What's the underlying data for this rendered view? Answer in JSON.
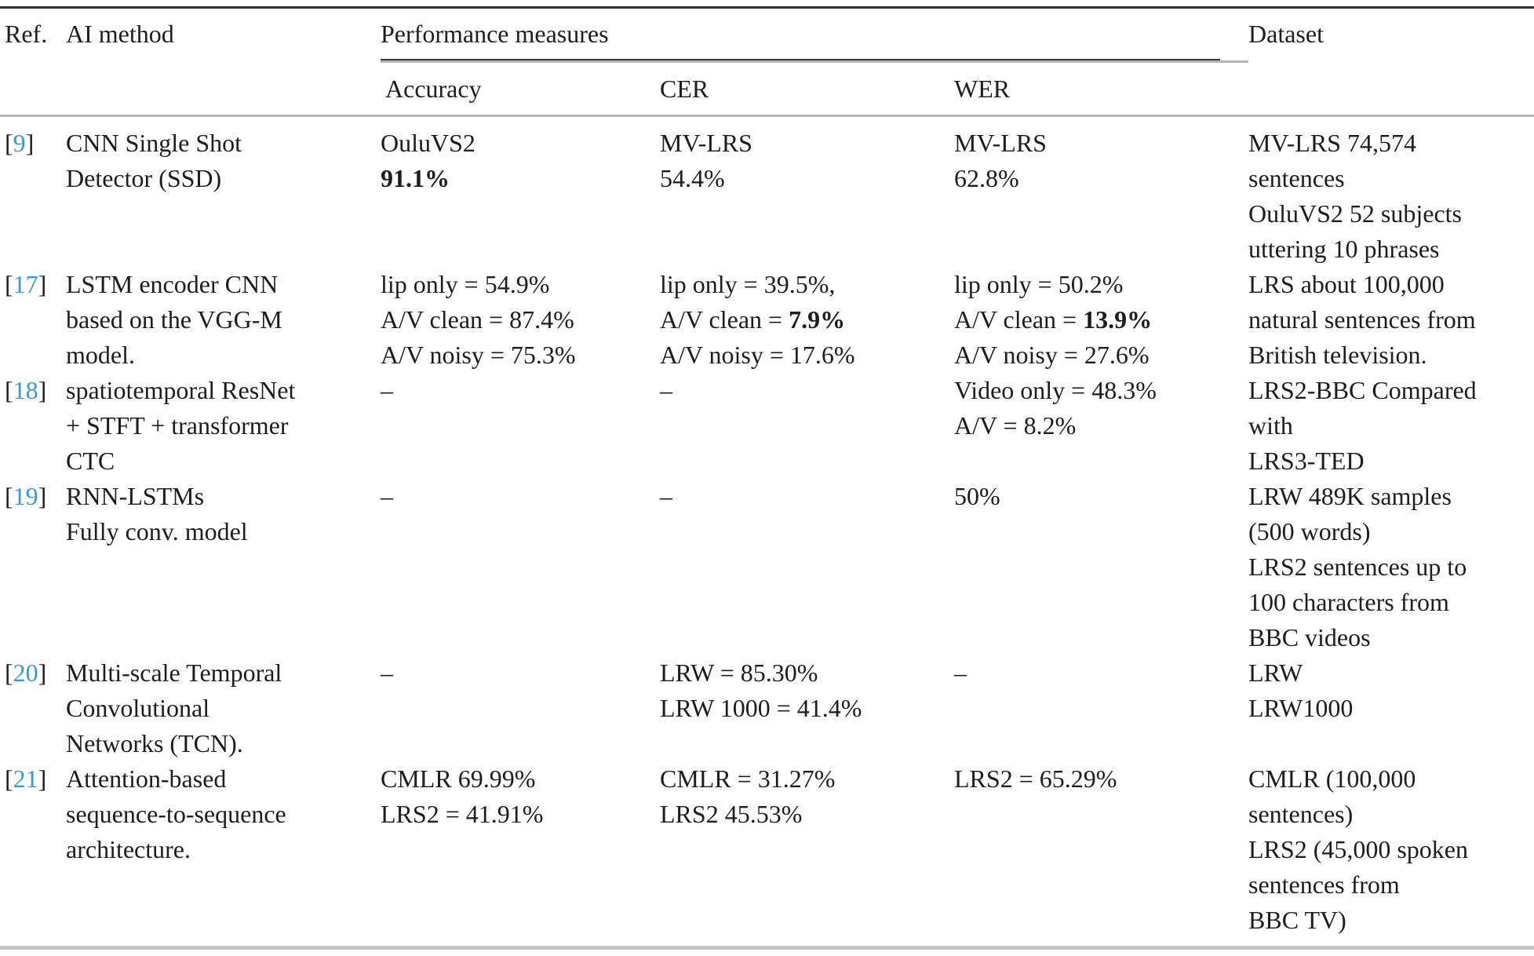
{
  "colors": {
    "ref_link_blue": "#3a99d2",
    "text": "#1d1d1d",
    "rule_dark": "#2f2f2f",
    "rule_gray": "#c6c6c6"
  },
  "table": {
    "header": {
      "ref": "Ref.",
      "method": "AI method",
      "performance": "Performance measures",
      "accuracy": "Accuracy",
      "cer": "CER",
      "wer": "WER",
      "dataset": "Dataset"
    },
    "rows": [
      {
        "ref": [
          [
            {
              "t": "["
            },
            {
              "t": "9",
              "link": true
            },
            {
              "t": "]"
            }
          ]
        ],
        "method": [
          [
            {
              "t": "CNN Single Shot"
            }
          ],
          [
            {
              "t": "Detector (SSD)"
            }
          ]
        ],
        "accuracy": [
          [
            {
              "t": "OuluVS2"
            }
          ],
          [
            {
              "t": "91.1%",
              "b": true
            }
          ]
        ],
        "cer": [
          [
            {
              "t": "MV-LRS"
            }
          ],
          [
            {
              "t": "54.4%"
            }
          ]
        ],
        "wer": [
          [
            {
              "t": "MV-LRS"
            }
          ],
          [
            {
              "t": "62.8%"
            }
          ]
        ],
        "dataset": [
          [
            {
              "t": "MV-LRS 74,574"
            }
          ],
          [
            {
              "t": "sentences"
            }
          ],
          [
            {
              "t": "OuluVS2 52 subjects"
            }
          ],
          [
            {
              "t": "uttering 10 phrases"
            }
          ]
        ]
      },
      {
        "ref": [
          [
            {
              "t": "["
            },
            {
              "t": "17",
              "link": true
            },
            {
              "t": "]"
            }
          ]
        ],
        "method": [
          [
            {
              "t": "LSTM encoder CNN"
            }
          ],
          [
            {
              "t": "based on the VGG-M"
            }
          ],
          [
            {
              "t": "model."
            }
          ]
        ],
        "accuracy": [
          [
            {
              "t": "lip only = 54.9%"
            }
          ],
          [
            {
              "t": "A/V clean = 87.4%"
            }
          ],
          [
            {
              "t": "A/V noisy = 75.3%"
            }
          ]
        ],
        "cer": [
          [
            {
              "t": "lip only = 39.5%,"
            }
          ],
          [
            {
              "t": "A/V clean = "
            },
            {
              "t": "7.9%",
              "b": true
            }
          ],
          [
            {
              "t": "A/V noisy = 17.6%"
            }
          ]
        ],
        "wer": [
          [
            {
              "t": "lip only = 50.2%"
            }
          ],
          [
            {
              "t": "A/V clean = "
            },
            {
              "t": "13.9%",
              "b": true
            }
          ],
          [
            {
              "t": "A/V noisy = 27.6%"
            }
          ]
        ],
        "dataset": [
          [
            {
              "t": "LRS about 100,000"
            }
          ],
          [
            {
              "t": "natural sentences from"
            }
          ],
          [
            {
              "t": "British television."
            }
          ]
        ]
      },
      {
        "ref": [
          [
            {
              "t": "["
            },
            {
              "t": "18",
              "link": true
            },
            {
              "t": "]"
            }
          ]
        ],
        "method": [
          [
            {
              "t": "spatiotemporal ResNet"
            }
          ],
          [
            {
              "t": "+ STFT + transformer"
            }
          ],
          [
            {
              "t": "CTC"
            }
          ]
        ],
        "accuracy": [
          [
            {
              "t": "–"
            }
          ]
        ],
        "cer": [
          [
            {
              "t": "–"
            }
          ]
        ],
        "wer": [
          [
            {
              "t": "Video only = 48.3%"
            }
          ],
          [
            {
              "t": "A/V = 8.2%"
            }
          ]
        ],
        "dataset": [
          [
            {
              "t": "LRS2-BBC Compared"
            }
          ],
          [
            {
              "t": "with"
            }
          ],
          [
            {
              "t": "LRS3-TED"
            }
          ]
        ]
      },
      {
        "ref": [
          [
            {
              "t": "["
            },
            {
              "t": "19",
              "link": true
            },
            {
              "t": "]"
            }
          ]
        ],
        "method": [
          [
            {
              "t": "RNN-LSTMs"
            }
          ],
          [
            {
              "t": "Fully conv. model"
            }
          ]
        ],
        "accuracy": [
          [
            {
              "t": "–"
            }
          ]
        ],
        "cer": [
          [
            {
              "t": "–"
            }
          ]
        ],
        "wer": [
          [
            {
              "t": "50%"
            }
          ]
        ],
        "dataset": [
          [
            {
              "t": "LRW 489K samples"
            }
          ],
          [
            {
              "t": "(500 words)"
            }
          ],
          [
            {
              "t": "LRS2 sentences up to"
            }
          ],
          [
            {
              "t": "100 characters from"
            }
          ],
          [
            {
              "t": "BBC videos"
            }
          ]
        ]
      },
      {
        "ref": [
          [
            {
              "t": "["
            },
            {
              "t": "20",
              "link": true
            },
            {
              "t": "]"
            }
          ]
        ],
        "method": [
          [
            {
              "t": "Multi-scale Temporal"
            }
          ],
          [
            {
              "t": "Convolutional"
            }
          ],
          [
            {
              "t": "Networks (TCN)."
            }
          ]
        ],
        "accuracy": [
          [
            {
              "t": "–"
            }
          ]
        ],
        "cer": [
          [
            {
              "t": "LRW = 85.30%"
            }
          ],
          [
            {
              "t": "LRW 1000 = 41.4%"
            }
          ]
        ],
        "wer": [
          [
            {
              "t": "–"
            }
          ]
        ],
        "dataset": [
          [
            {
              "t": "LRW"
            }
          ],
          [
            {
              "t": "LRW1000"
            }
          ]
        ]
      },
      {
        "ref": [
          [
            {
              "t": "["
            },
            {
              "t": "21",
              "link": true
            },
            {
              "t": "]"
            }
          ]
        ],
        "method": [
          [
            {
              "t": "Attention-based"
            }
          ],
          [
            {
              "t": "sequence-to-sequence"
            }
          ],
          [
            {
              "t": "architecture."
            }
          ]
        ],
        "accuracy": [
          [
            {
              "t": "CMLR 69.99%"
            }
          ],
          [
            {
              "t": "LRS2 = 41.91%"
            }
          ]
        ],
        "cer": [
          [
            {
              "t": "CMLR = 31.27%"
            }
          ],
          [
            {
              "t": "LRS2 45.53%"
            }
          ]
        ],
        "wer": [
          [
            {
              "t": "LRS2 = 65.29%"
            }
          ]
        ],
        "dataset": [
          [
            {
              "t": "CMLR (100,000"
            }
          ],
          [
            {
              "t": "sentences)"
            }
          ],
          [
            {
              "t": "LRS2 (45,000 spoken"
            }
          ],
          [
            {
              "t": "sentences from"
            }
          ],
          [
            {
              "t": "BBC TV)"
            }
          ]
        ]
      }
    ]
  }
}
